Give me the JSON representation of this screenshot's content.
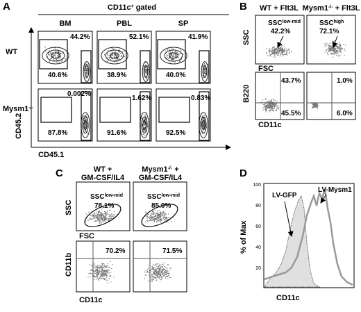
{
  "panel_a": {
    "label": "A",
    "header": {
      "text": "CD11c",
      "sup": "+",
      "rest": " gated"
    },
    "columns": [
      "BM",
      "PBL",
      "SP"
    ],
    "rows": [
      {
        "text": "WT"
      },
      {
        "text": "Mysm1",
        "sup": "-/-"
      }
    ],
    "y_axis": "CD45.2",
    "x_axis": "CD45.1",
    "gates": [
      [
        [
          "44.2%",
          "40.6%"
        ],
        [
          "52.1%",
          "38.9%"
        ],
        [
          "41.9%",
          "40.0%"
        ]
      ],
      [
        [
          "0.002%",
          "87.8%"
        ],
        [
          "1.62%",
          "91.6%"
        ],
        [
          "0.83%",
          "92.5%"
        ]
      ]
    ]
  },
  "panel_b": {
    "label": "B",
    "columns": [
      {
        "text": "WT + Flt3L"
      },
      {
        "text": "Mysm1",
        "sup": "-/-",
        "rest": " + Flt3L"
      }
    ],
    "top": {
      "y_axis": "SSC",
      "x_axis": "FSC",
      "gates": [
        {
          "text": "SSC",
          "sup": "low-mid",
          "value": "42.2%"
        },
        {
          "text": "SSC",
          "sup": "high",
          "value": "72.1%"
        }
      ]
    },
    "bottom": {
      "y_axis": "B220",
      "x_axis": "CD11c",
      "gates": [
        [
          "43.7%",
          "45.5%"
        ],
        [
          "1.0%",
          "6.0%"
        ]
      ]
    }
  },
  "panel_c": {
    "label": "C",
    "columns": [
      {
        "line1": "WT +",
        "line2": "GM-CSF/IL4"
      },
      {
        "line1": "Mysm1",
        "sup": "-/-",
        "rest": " +",
        "line2": "GM-CSF/IL4"
      }
    ],
    "top": {
      "y_axis": "SSC",
      "x_axis": "FSC",
      "gates": [
        {
          "text": "SSC",
          "sup": "low-mid",
          "value": "78.1%"
        },
        {
          "text": "SSC",
          "sup": "low-mid",
          "value": "85.0%"
        }
      ]
    },
    "bottom": {
      "y_axis": "CD11b",
      "x_axis": "CD11c",
      "gates": [
        "70.2%",
        "71.5%"
      ]
    }
  },
  "panel_d": {
    "label": "D",
    "y_axis": "% of Max",
    "x_axis": "CD11c",
    "yticks": [
      "100",
      "80",
      "60",
      "40",
      "20"
    ],
    "series": [
      "LV-GFP",
      "LV-Mysm1"
    ]
  }
}
